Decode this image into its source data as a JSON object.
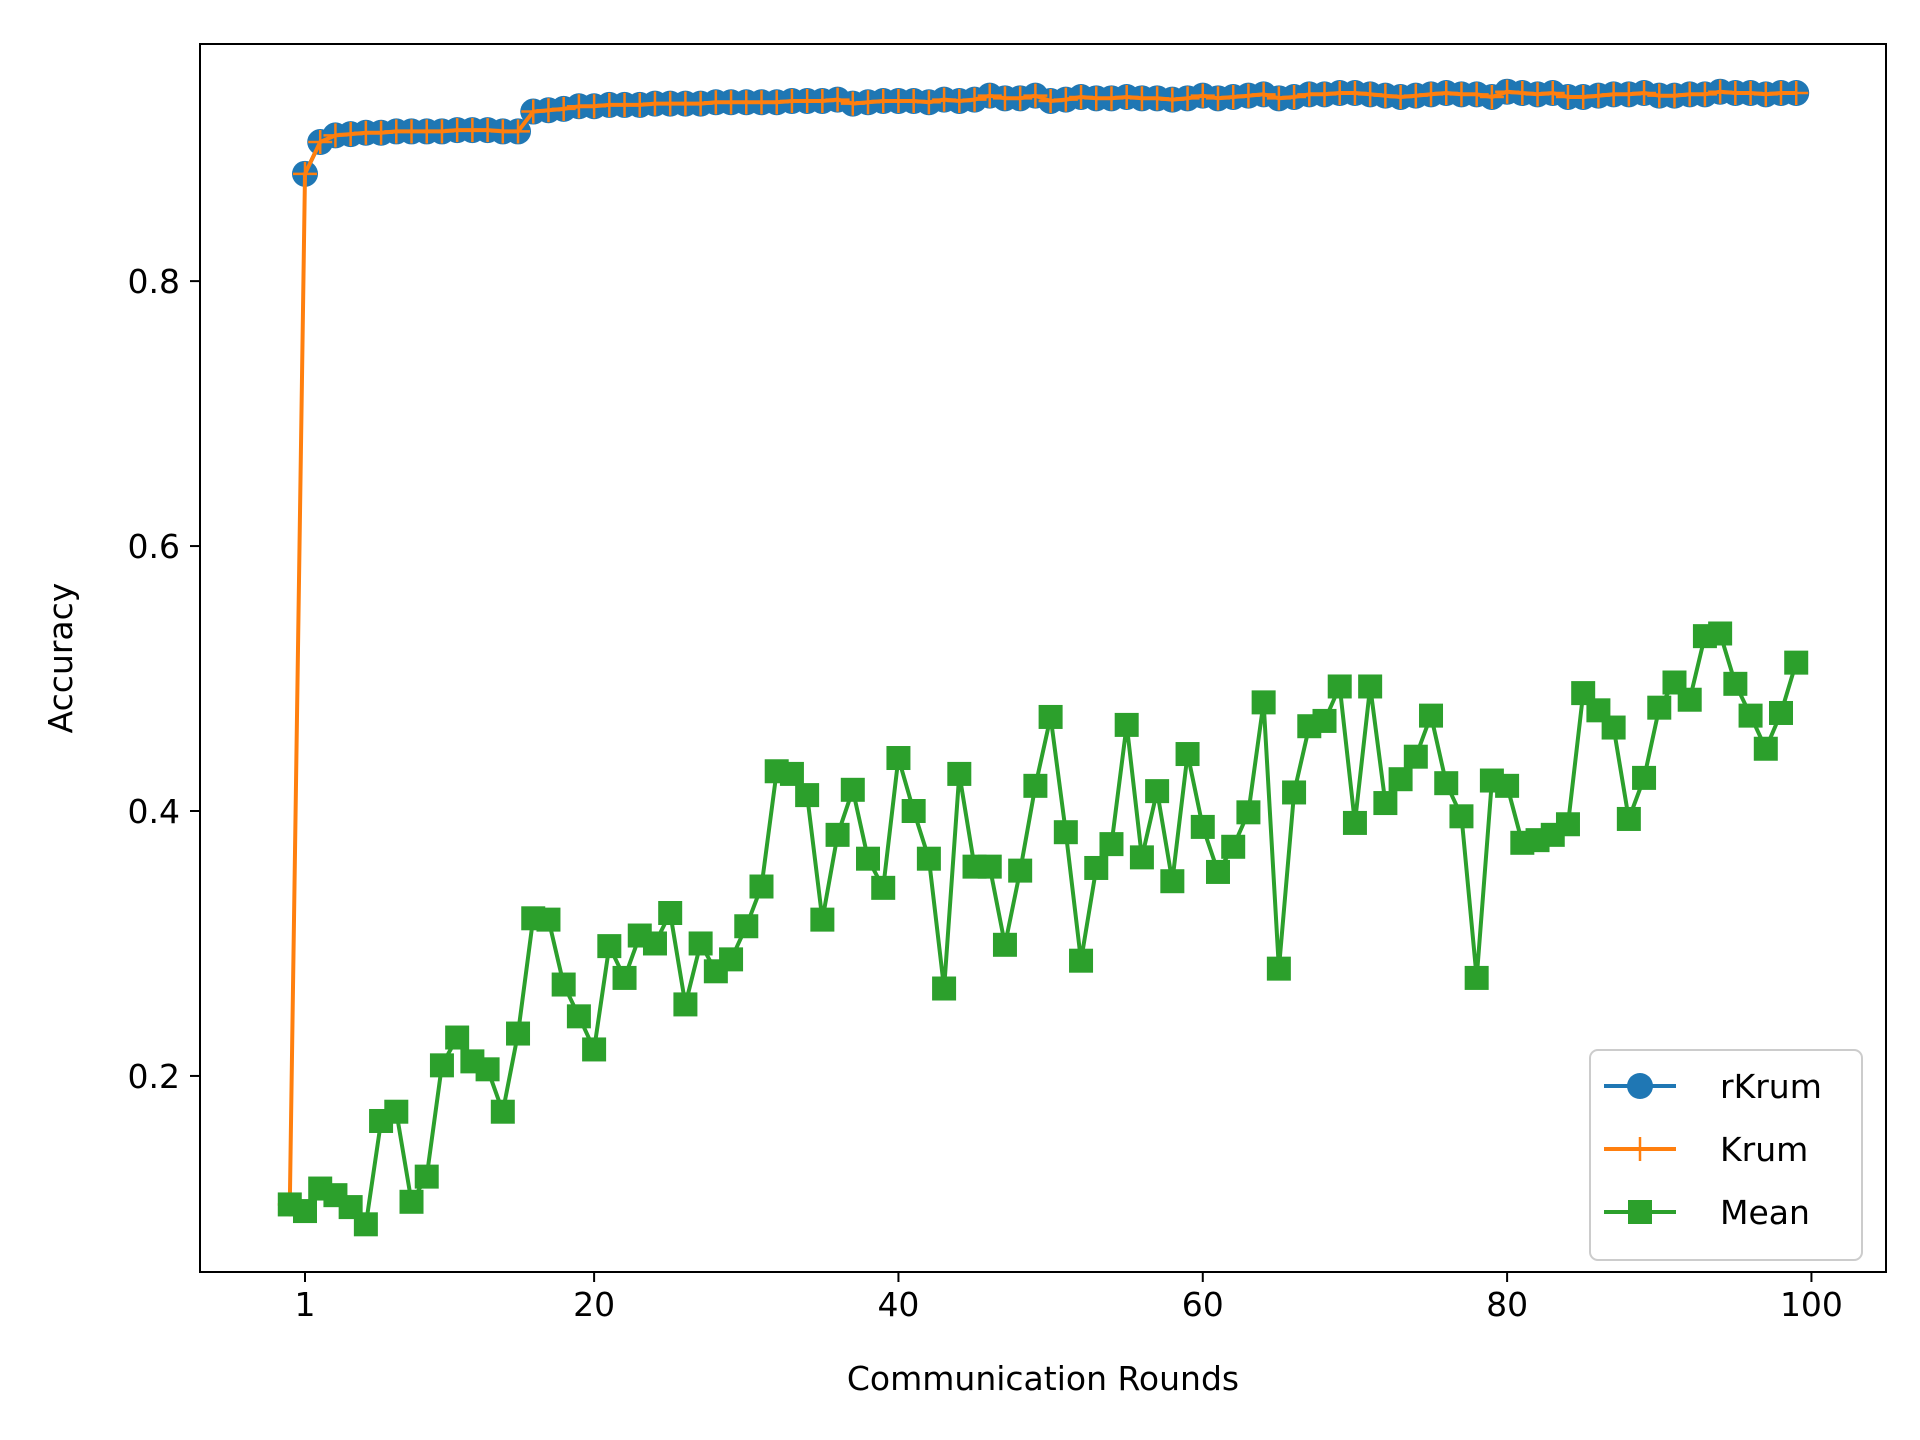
{
  "chart_data": {
    "type": "line",
    "title": "",
    "xlabel": "Communication Rounds",
    "ylabel": "Accuracy",
    "xlim": [
      -5.9,
      104.9
    ],
    "ylim": [
      0.052,
      0.979
    ],
    "xticks": [
      1,
      20,
      40,
      60,
      80,
      100
    ],
    "yticks": [
      0.2,
      0.4,
      0.6,
      0.8
    ],
    "ytick_labels": [
      "0.2",
      "0.4",
      "0.6",
      "0.8"
    ],
    "legend": {
      "position": "bottom-right"
    },
    "grid": false,
    "series": [
      {
        "name": "rKrum",
        "color": "#1f77b4",
        "marker": "circle",
        "x": [
          0,
          1,
          2,
          3,
          4,
          5,
          6,
          7,
          8,
          9,
          10,
          11,
          12,
          13,
          14,
          15,
          16,
          17,
          18,
          19,
          20,
          21,
          22,
          23,
          24,
          25,
          26,
          27,
          28,
          29,
          30,
          31,
          32,
          33,
          34,
          35,
          36,
          37,
          38,
          39,
          40,
          41,
          42,
          43,
          44,
          45,
          46,
          47,
          48,
          49,
          50,
          51,
          52,
          53,
          54,
          55,
          56,
          57,
          58,
          59,
          60,
          61,
          62,
          63,
          64,
          65,
          66,
          67,
          68,
          69,
          70,
          71,
          72,
          73,
          74,
          75,
          76,
          77,
          78,
          79,
          80,
          81,
          82,
          83,
          84,
          85,
          86,
          87,
          88,
          89,
          90,
          91,
          92,
          93,
          94,
          95,
          96,
          97,
          98,
          99
        ],
        "y": [
          null,
          0.881,
          0.905,
          0.91,
          0.911,
          0.912,
          0.912,
          0.913,
          0.913,
          0.913,
          0.913,
          0.914,
          0.914,
          0.914,
          0.913,
          0.913,
          0.928,
          0.929,
          0.93,
          0.932,
          0.932,
          0.933,
          0.933,
          0.933,
          0.934,
          0.934,
          0.934,
          0.934,
          0.935,
          0.935,
          0.935,
          0.935,
          0.935,
          0.936,
          0.936,
          0.936,
          0.937,
          0.934,
          0.935,
          0.936,
          0.936,
          0.936,
          0.935,
          0.937,
          0.936,
          0.937,
          0.94,
          0.938,
          0.938,
          0.94,
          0.936,
          0.937,
          0.939,
          0.938,
          0.938,
          0.939,
          0.938,
          0.938,
          0.937,
          0.938,
          0.94,
          0.938,
          0.939,
          0.94,
          0.941,
          0.938,
          0.939,
          0.941,
          0.941,
          0.942,
          0.942,
          0.941,
          0.94,
          0.939,
          0.94,
          0.941,
          0.942,
          0.941,
          0.941,
          0.939,
          0.943,
          0.942,
          0.941,
          0.942,
          0.939,
          0.939,
          0.94,
          0.941,
          0.941,
          0.942,
          0.94,
          0.94,
          0.941,
          0.941,
          0.943,
          0.942,
          0.942,
          0.941,
          0.942,
          0.942
        ]
      },
      {
        "name": "Krum",
        "color": "#ff7f0e",
        "marker": "plus",
        "x": [
          0,
          1,
          2,
          3,
          4,
          5,
          6,
          7,
          8,
          9,
          10,
          11,
          12,
          13,
          14,
          15,
          16,
          17,
          18,
          19,
          20,
          21,
          22,
          23,
          24,
          25,
          26,
          27,
          28,
          29,
          30,
          31,
          32,
          33,
          34,
          35,
          36,
          37,
          38,
          39,
          40,
          41,
          42,
          43,
          44,
          45,
          46,
          47,
          48,
          49,
          50,
          51,
          52,
          53,
          54,
          55,
          56,
          57,
          58,
          59,
          60,
          61,
          62,
          63,
          64,
          65,
          66,
          67,
          68,
          69,
          70,
          71,
          72,
          73,
          74,
          75,
          76,
          77,
          78,
          79,
          80,
          81,
          82,
          83,
          84,
          85,
          86,
          87,
          88,
          89,
          90,
          91,
          92,
          93,
          94,
          95,
          96,
          97,
          98,
          99
        ],
        "y": [
          0.103,
          0.881,
          0.905,
          0.91,
          0.911,
          0.912,
          0.912,
          0.913,
          0.913,
          0.913,
          0.913,
          0.914,
          0.914,
          0.914,
          0.913,
          0.913,
          0.928,
          0.929,
          0.93,
          0.932,
          0.932,
          0.933,
          0.933,
          0.933,
          0.934,
          0.934,
          0.934,
          0.934,
          0.935,
          0.935,
          0.935,
          0.935,
          0.935,
          0.936,
          0.936,
          0.936,
          0.937,
          0.934,
          0.935,
          0.936,
          0.936,
          0.936,
          0.935,
          0.937,
          0.936,
          0.937,
          0.94,
          0.938,
          0.938,
          0.94,
          0.936,
          0.937,
          0.939,
          0.938,
          0.938,
          0.939,
          0.938,
          0.938,
          0.937,
          0.938,
          0.94,
          0.938,
          0.939,
          0.94,
          0.941,
          0.938,
          0.939,
          0.941,
          0.941,
          0.942,
          0.942,
          0.941,
          0.94,
          0.939,
          0.94,
          0.941,
          0.942,
          0.941,
          0.941,
          0.939,
          0.943,
          0.942,
          0.941,
          0.942,
          0.939,
          0.939,
          0.94,
          0.941,
          0.941,
          0.942,
          0.94,
          0.94,
          0.941,
          0.941,
          0.943,
          0.942,
          0.942,
          0.941,
          0.942,
          0.942
        ]
      },
      {
        "name": "Mean",
        "color": "#2ca02c",
        "marker": "square",
        "x": [
          0,
          1,
          2,
          3,
          4,
          5,
          6,
          7,
          8,
          9,
          10,
          11,
          12,
          13,
          14,
          15,
          16,
          17,
          18,
          19,
          20,
          21,
          22,
          23,
          24,
          25,
          26,
          27,
          28,
          29,
          30,
          31,
          32,
          33,
          34,
          35,
          36,
          37,
          38,
          39,
          40,
          41,
          42,
          43,
          44,
          45,
          46,
          47,
          48,
          49,
          50,
          51,
          52,
          53,
          54,
          55,
          56,
          57,
          58,
          59,
          60,
          61,
          62,
          63,
          64,
          65,
          66,
          67,
          68,
          69,
          70,
          71,
          72,
          73,
          74,
          75,
          76,
          77,
          78,
          79,
          80,
          81,
          82,
          83,
          84,
          85,
          86,
          87,
          88,
          89,
          90,
          91,
          92,
          93,
          94,
          95,
          96,
          97,
          98,
          99
        ],
        "y": [
          0.103,
          0.098,
          0.115,
          0.11,
          0.101,
          0.088,
          0.166,
          0.173,
          0.105,
          0.124,
          0.208,
          0.229,
          0.211,
          0.205,
          0.173,
          0.232,
          0.319,
          0.318,
          0.269,
          0.245,
          0.22,
          0.298,
          0.274,
          0.306,
          0.3,
          0.323,
          0.254,
          0.3,
          0.279,
          0.288,
          0.313,
          0.343,
          0.43,
          0.428,
          0.412,
          0.318,
          0.382,
          0.416,
          0.364,
          0.342,
          0.44,
          0.4,
          0.364,
          0.266,
          0.428,
          0.358,
          0.358,
          0.299,
          0.355,
          0.419,
          0.471,
          0.384,
          0.287,
          0.357,
          0.375,
          0.465,
          0.365,
          0.415,
          0.347,
          0.443,
          0.388,
          0.354,
          0.373,
          0.399,
          0.482,
          0.281,
          0.414,
          0.464,
          0.468,
          0.494,
          0.391,
          0.494,
          0.406,
          0.424,
          0.441,
          0.472,
          0.421,
          0.396,
          0.274,
          0.423,
          0.419,
          0.376,
          0.378,
          0.382,
          0.39,
          0.489,
          0.476,
          0.463,
          0.394,
          0.425,
          0.478,
          0.497,
          0.484,
          0.532,
          0.534,
          0.496,
          0.472,
          0.447,
          0.474,
          0.512
        ]
      }
    ]
  }
}
